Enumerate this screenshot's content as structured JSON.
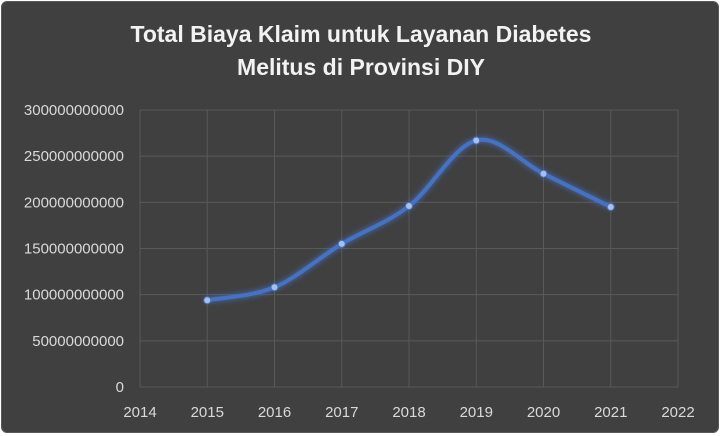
{
  "chart_data": {
    "type": "line",
    "title": "Total Biaya Klaim  untuk Layanan Diabetes\nMelitus di Provinsi DIY",
    "xlabel": "",
    "ylabel": "",
    "x_ticks": [
      "2014",
      "2015",
      "2016",
      "2017",
      "2018",
      "2019",
      "2020",
      "2021",
      "2022"
    ],
    "y_ticks": [
      "0",
      "50000000000",
      "100000000000",
      "150000000000",
      "200000000000",
      "250000000000",
      "300000000000"
    ],
    "xlim": [
      2014,
      2022
    ],
    "ylim": [
      0,
      300000000000
    ],
    "grid": true,
    "legend": "none",
    "series": [
      {
        "x": [
          2015,
          2016,
          2017,
          2018,
          2019,
          2020,
          2021
        ],
        "values": [
          94000000000,
          108000000000,
          155000000000,
          196000000000,
          267000000000,
          231000000000,
          195000000000
        ],
        "color": "#4472c4"
      }
    ]
  },
  "style": {
    "background": "#404040",
    "grid_color": "#595959",
    "text_color": "#d9d9d9",
    "line_color": "#4472c4"
  }
}
